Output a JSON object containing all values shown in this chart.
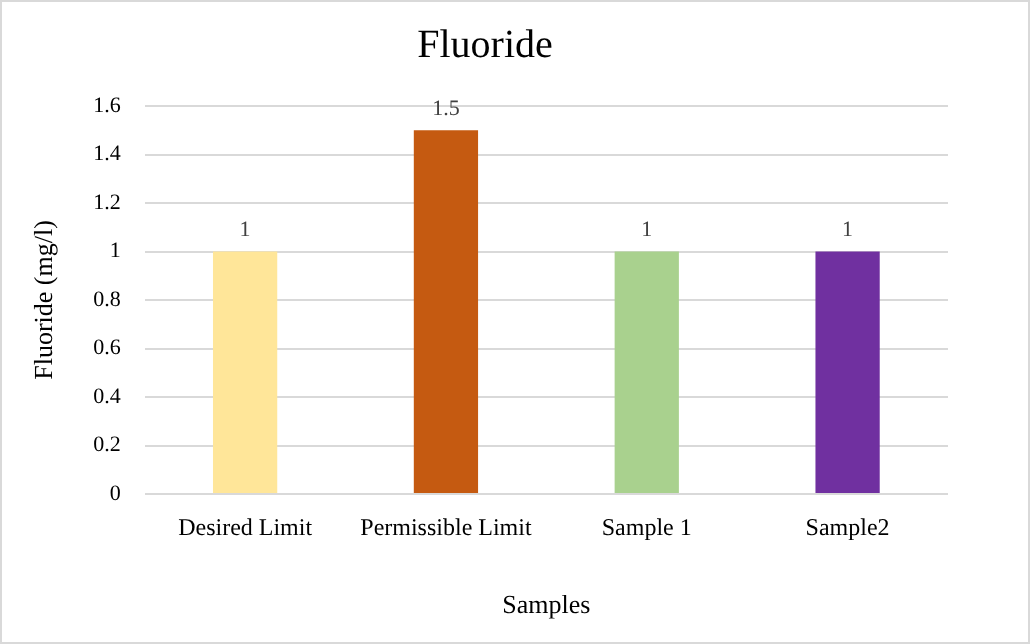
{
  "chart_data": {
    "type": "bar",
    "title": "Fluoride",
    "xlabel": "Samples",
    "ylabel": "Fluoride (mg/l)",
    "categories": [
      "Desired Limit",
      "Permissible Limit",
      "Sample 1",
      "Sample2"
    ],
    "values": [
      1,
      1.5,
      1,
      1
    ],
    "colors": [
      "#ffe699",
      "#c55a11",
      "#a9d18e",
      "#7030a0"
    ],
    "ylim": [
      0,
      1.6
    ],
    "yticks": [
      0,
      0.2,
      0.4,
      0.6,
      0.8,
      1,
      1.2,
      1.4,
      1.6
    ],
    "grid": "y",
    "legend": false,
    "data_labels": true
  }
}
